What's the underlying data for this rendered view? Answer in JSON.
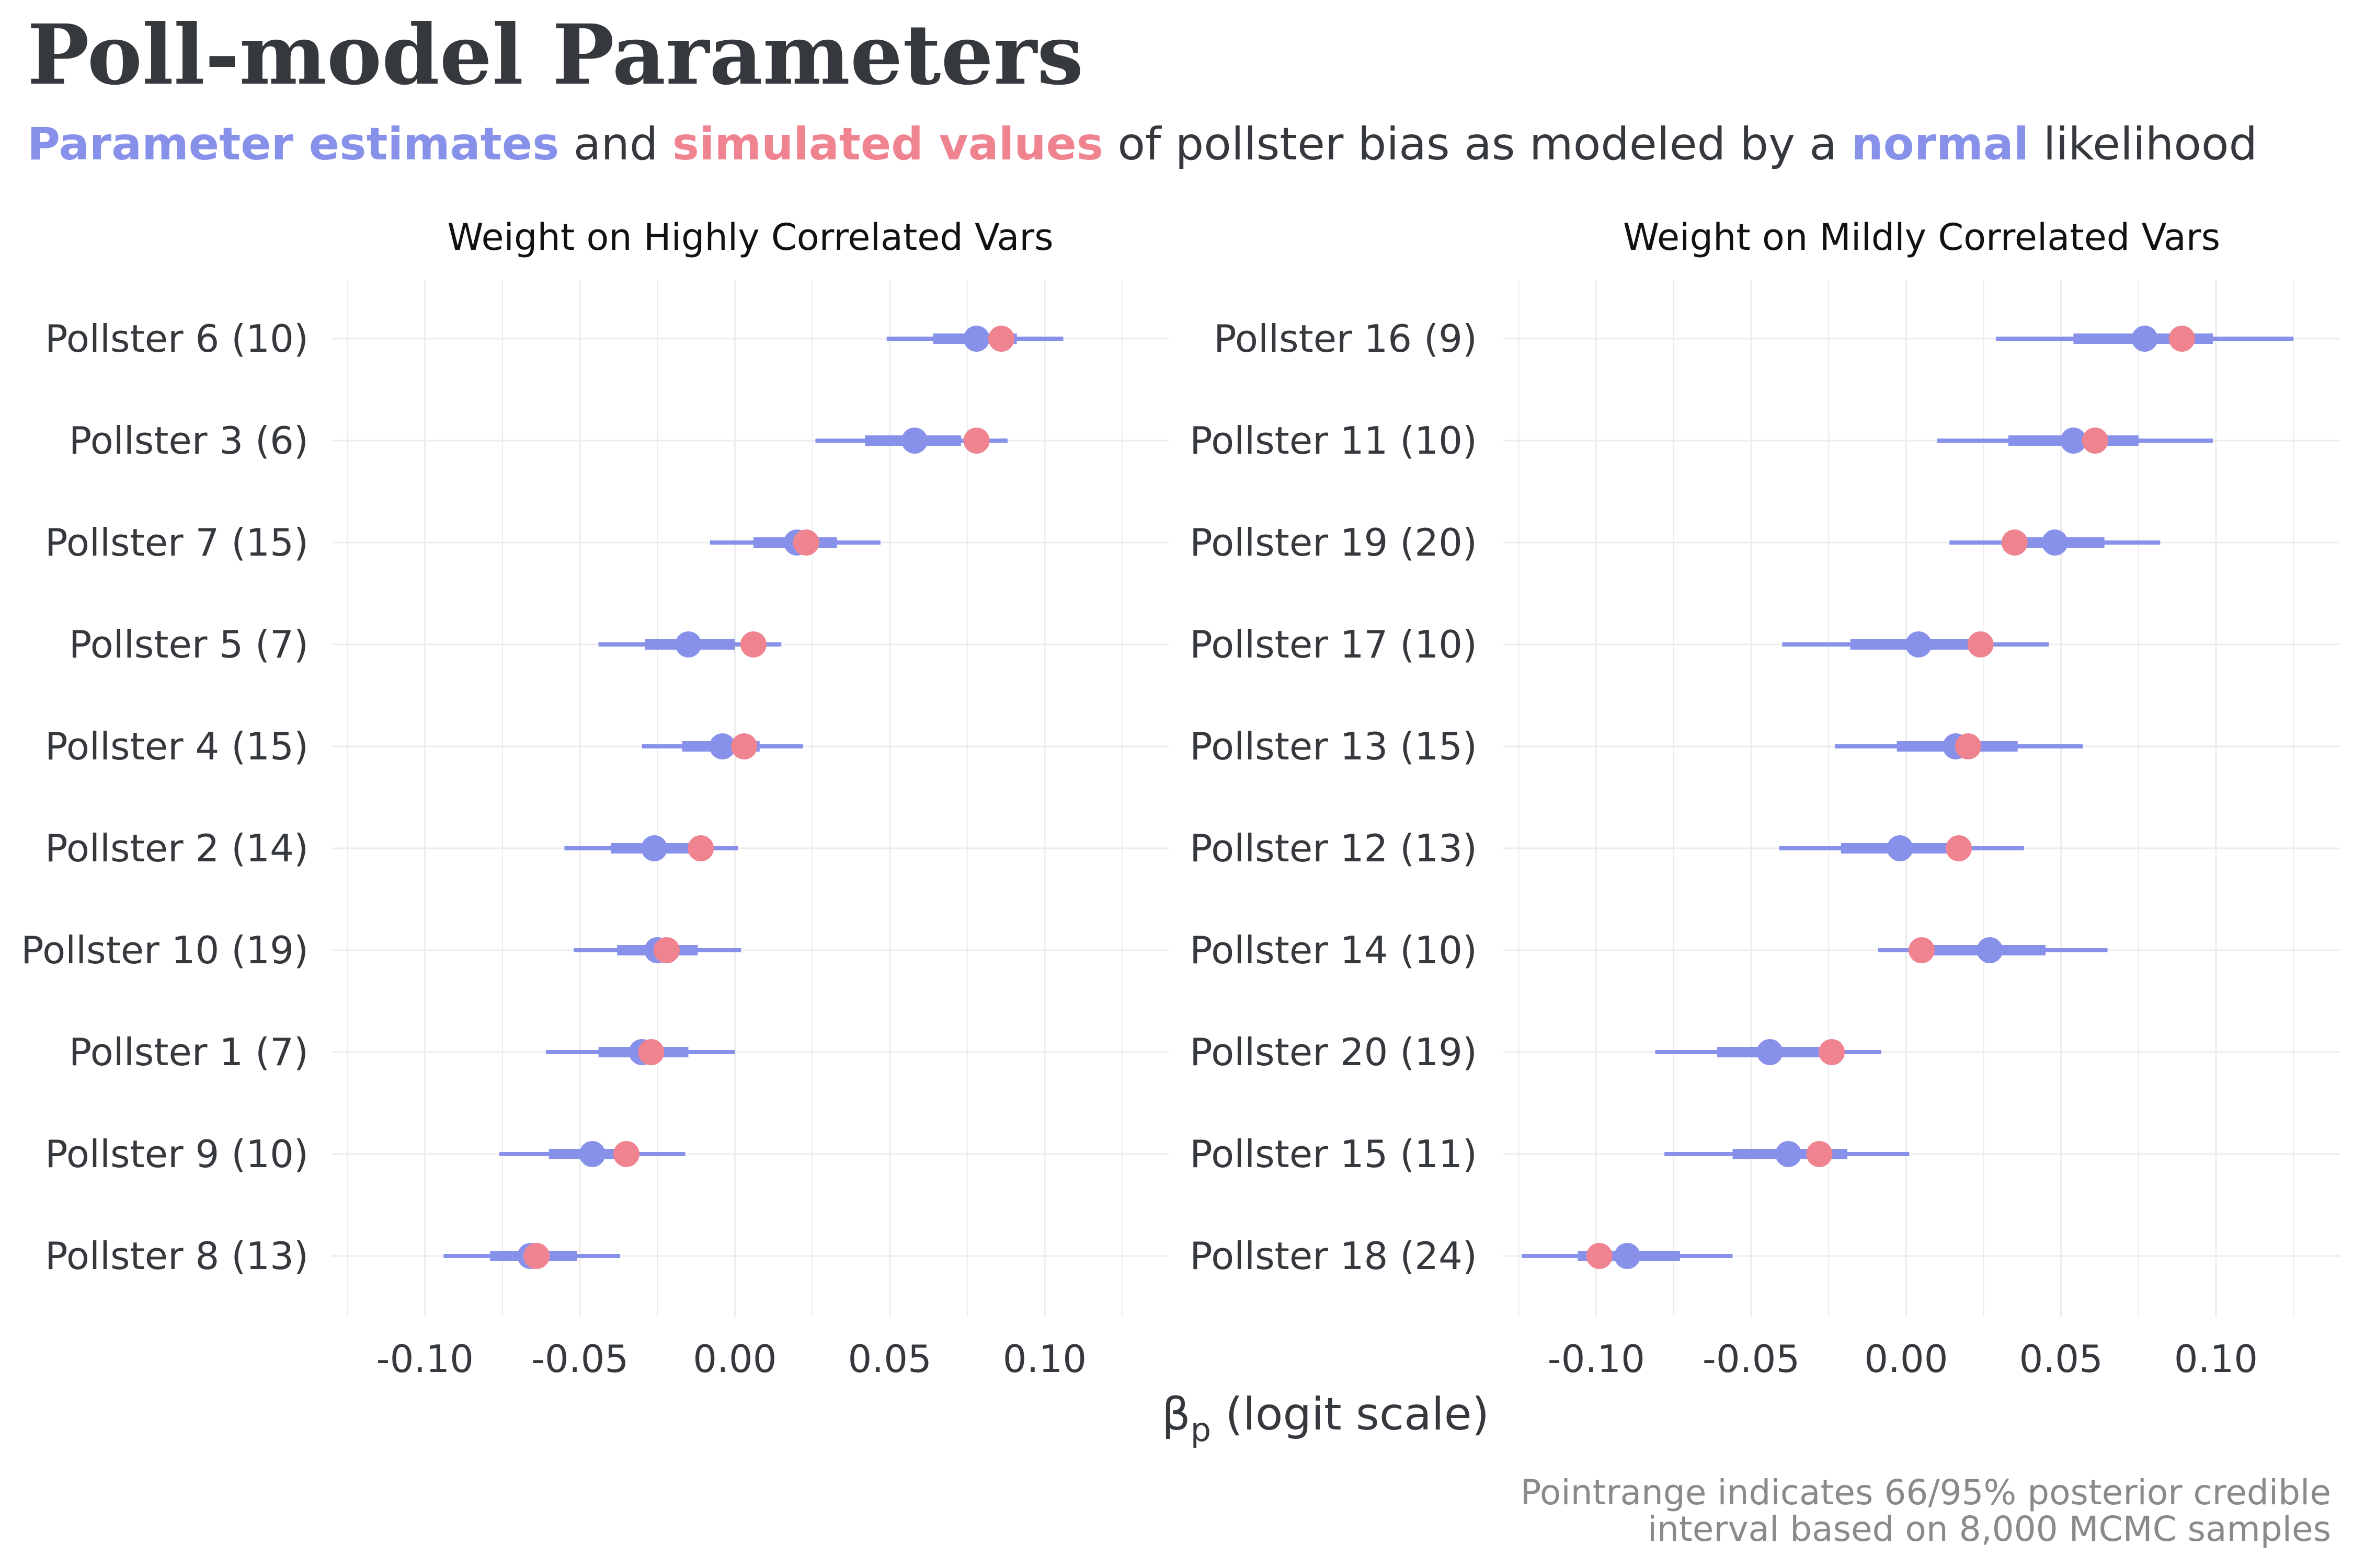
{
  "title": "Poll-model Parameters",
  "subtitle": {
    "part1": "Parameter estimates",
    "part2": " and ",
    "part3": "simulated values",
    "part4": " of pollster bias as modeled by a ",
    "part5": "normal",
    "part6": " likelihood"
  },
  "caption": {
    "line1": "Pointrange indicates 66/95% posterior credible",
    "line2": "interval based on 8,000 MCMC samples"
  },
  "colors": {
    "estimate": "#8891ea",
    "simulated": "#ef8490",
    "text": "#35393d",
    "grid": "#ececec",
    "caption": "#8a8a8a"
  },
  "chart_data": {
    "type": "pointrange",
    "x_label_main": "β",
    "x_label_sub": "p",
    "x_label_rest": " (logit scale)",
    "xlim": [
      -0.13,
      0.14
    ],
    "x_ticks": [
      -0.1,
      -0.05,
      0.0,
      0.05,
      0.1
    ],
    "x_tick_labels": [
      "-0.10",
      "-0.05",
      "0.00",
      "0.05",
      "0.10"
    ],
    "legend": "none (encoded in subtitle colors)",
    "grid": true,
    "panels": [
      {
        "name": "Weight on Highly Correlated Vars",
        "rows": [
          {
            "label": "Pollster 6 (10)",
            "est": 0.078,
            "sim": 0.086,
            "lo66": 0.064,
            "hi66": 0.091,
            "lo95": 0.049,
            "hi95": 0.106
          },
          {
            "label": "Pollster 3 (6)",
            "est": 0.058,
            "sim": 0.078,
            "lo66": 0.042,
            "hi66": 0.073,
            "lo95": 0.026,
            "hi95": 0.088
          },
          {
            "label": "Pollster 7 (15)",
            "est": 0.02,
            "sim": 0.023,
            "lo66": 0.006,
            "hi66": 0.033,
            "lo95": -0.008,
            "hi95": 0.047
          },
          {
            "label": "Pollster 5 (7)",
            "est": -0.015,
            "sim": 0.006,
            "lo66": -0.029,
            "hi66": 0.0,
            "lo95": -0.044,
            "hi95": 0.015
          },
          {
            "label": "Pollster 4 (15)",
            "est": -0.004,
            "sim": 0.003,
            "lo66": -0.017,
            "hi66": 0.008,
            "lo95": -0.03,
            "hi95": 0.022
          },
          {
            "label": "Pollster 2 (14)",
            "est": -0.026,
            "sim": -0.011,
            "lo66": -0.04,
            "hi66": -0.012,
            "lo95": -0.055,
            "hi95": 0.001
          },
          {
            "label": "Pollster 10 (19)",
            "est": -0.025,
            "sim": -0.022,
            "lo66": -0.038,
            "hi66": -0.012,
            "lo95": -0.052,
            "hi95": 0.002
          },
          {
            "label": "Pollster 1 (7)",
            "est": -0.03,
            "sim": -0.027,
            "lo66": -0.044,
            "hi66": -0.015,
            "lo95": -0.061,
            "hi95": 0.0
          },
          {
            "label": "Pollster 9 (10)",
            "est": -0.046,
            "sim": -0.035,
            "lo66": -0.06,
            "hi66": -0.032,
            "lo95": -0.076,
            "hi95": -0.016
          },
          {
            "label": "Pollster 8 (13)",
            "est": -0.066,
            "sim": -0.064,
            "lo66": -0.079,
            "hi66": -0.051,
            "lo95": -0.094,
            "hi95": -0.037
          }
        ]
      },
      {
        "name": "Weight on Mildly Correlated Vars",
        "rows": [
          {
            "label": "Pollster 16 (9)",
            "est": 0.077,
            "sim": 0.089,
            "lo66": 0.054,
            "hi66": 0.099,
            "lo95": 0.029,
            "hi95": 0.125
          },
          {
            "label": "Pollster 11 (10)",
            "est": 0.054,
            "sim": 0.061,
            "lo66": 0.033,
            "hi66": 0.075,
            "lo95": 0.01,
            "hi95": 0.099
          },
          {
            "label": "Pollster 19 (20)",
            "est": 0.048,
            "sim": 0.035,
            "lo66": 0.032,
            "hi66": 0.064,
            "lo95": 0.014,
            "hi95": 0.082
          },
          {
            "label": "Pollster 17 (10)",
            "est": 0.004,
            "sim": 0.024,
            "lo66": -0.018,
            "hi66": 0.025,
            "lo95": -0.04,
            "hi95": 0.046
          },
          {
            "label": "Pollster 13 (15)",
            "est": 0.016,
            "sim": 0.02,
            "lo66": -0.003,
            "hi66": 0.036,
            "lo95": -0.023,
            "hi95": 0.057
          },
          {
            "label": "Pollster 12 (13)",
            "est": -0.002,
            "sim": 0.017,
            "lo66": -0.021,
            "hi66": 0.017,
            "lo95": -0.041,
            "hi95": 0.038
          },
          {
            "label": "Pollster 14 (10)",
            "est": 0.027,
            "sim": 0.005,
            "lo66": 0.008,
            "hi66": 0.045,
            "lo95": -0.009,
            "hi95": 0.065
          },
          {
            "label": "Pollster 20 (19)",
            "est": -0.044,
            "sim": -0.024,
            "lo66": -0.061,
            "hi66": -0.027,
            "lo95": -0.081,
            "hi95": -0.008
          },
          {
            "label": "Pollster 15 (11)",
            "est": -0.038,
            "sim": -0.028,
            "lo66": -0.056,
            "hi66": -0.019,
            "lo95": -0.078,
            "hi95": 0.001
          },
          {
            "label": "Pollster 18 (24)",
            "est": -0.09,
            "sim": -0.099,
            "lo66": -0.106,
            "hi66": -0.073,
            "lo95": -0.124,
            "hi95": -0.056
          }
        ]
      }
    ]
  }
}
